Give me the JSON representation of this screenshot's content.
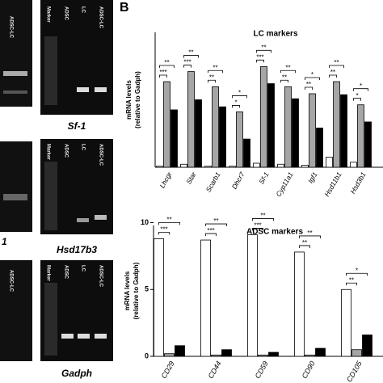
{
  "panel": "B",
  "gels": [
    {
      "lanes": [
        "ADSC-LC"
      ],
      "label": "1"
    },
    {
      "lanes": [
        "ADSC-LC"
      ]
    },
    {
      "lanes": [
        "Marker",
        "ADSC",
        "LC",
        "ADSC-LC"
      ],
      "label": "Sf-1"
    },
    {
      "lanes": [
        "Marker",
        "ADSC",
        "LC",
        "ADSC-LC"
      ],
      "label": "Hsd17b3"
    },
    {
      "lanes": [
        "Marker",
        "ADSC",
        "LC",
        "ADSC-LC"
      ],
      "label": "Gadph"
    }
  ],
  "chart_data": [
    {
      "type": "bar",
      "title": "LC markers",
      "ylabel": [
        "mRNA levels",
        "(relative to Gadph)"
      ],
      "categories": [
        "Lhcgr",
        "Star",
        "Scarb1",
        "Dhcr7",
        "Sf-1",
        "Cyp11a1",
        "Igf1",
        "Hsd11b1",
        "Hsd3b1"
      ],
      "series": [
        {
          "color": "#ffffff",
          "values": [
            0.1,
            0.3,
            0.1,
            0.1,
            0.4,
            0.3,
            0.2,
            1.0,
            0.5
          ]
        },
        {
          "color": "#a6a6a6",
          "values": [
            8.5,
            9.5,
            8.0,
            5.5,
            10.0,
            8.0,
            7.3,
            8.5,
            6.2
          ]
        },
        {
          "color": "#000000",
          "values": [
            5.7,
            6.7,
            6.0,
            2.8,
            8.3,
            6.8,
            3.9,
            7.2,
            4.5
          ]
        }
      ],
      "annotations": [
        [
          "**",
          "***"
        ],
        [
          "**",
          "***"
        ],
        [
          "**",
          "**"
        ],
        [
          "*",
          "*"
        ],
        [
          "**",
          "***"
        ],
        [
          "**",
          "**"
        ],
        [
          "*",
          "**"
        ],
        [
          "**",
          "**"
        ],
        [
          "*",
          "*"
        ]
      ],
      "ylim": [
        0,
        15
      ]
    },
    {
      "type": "bar",
      "title": "ADSC markers",
      "ylabel": [
        "mRNA levels",
        "(relative to Gadph)"
      ],
      "categories": [
        "CD29",
        "CD44",
        "CD59",
        "CD90",
        "CD105"
      ],
      "series": [
        {
          "color": "#ffffff",
          "values": [
            8.8,
            8.7,
            9.1,
            7.8,
            5.0
          ]
        },
        {
          "color": "#a6a6a6",
          "values": [
            0.2,
            0.1,
            0.1,
            0.1,
            0.5
          ]
        },
        {
          "color": "#000000",
          "values": [
            0.8,
            0.5,
            0.3,
            0.6,
            1.6
          ]
        }
      ],
      "annotations": [
        [
          "**",
          "***"
        ],
        [
          "**",
          "***"
        ],
        [
          "**",
          "***"
        ],
        [
          "**",
          "**"
        ],
        [
          "*",
          "**"
        ]
      ],
      "ylim": [
        0,
        11
      ],
      "yticks": [
        0,
        5,
        10
      ]
    }
  ]
}
